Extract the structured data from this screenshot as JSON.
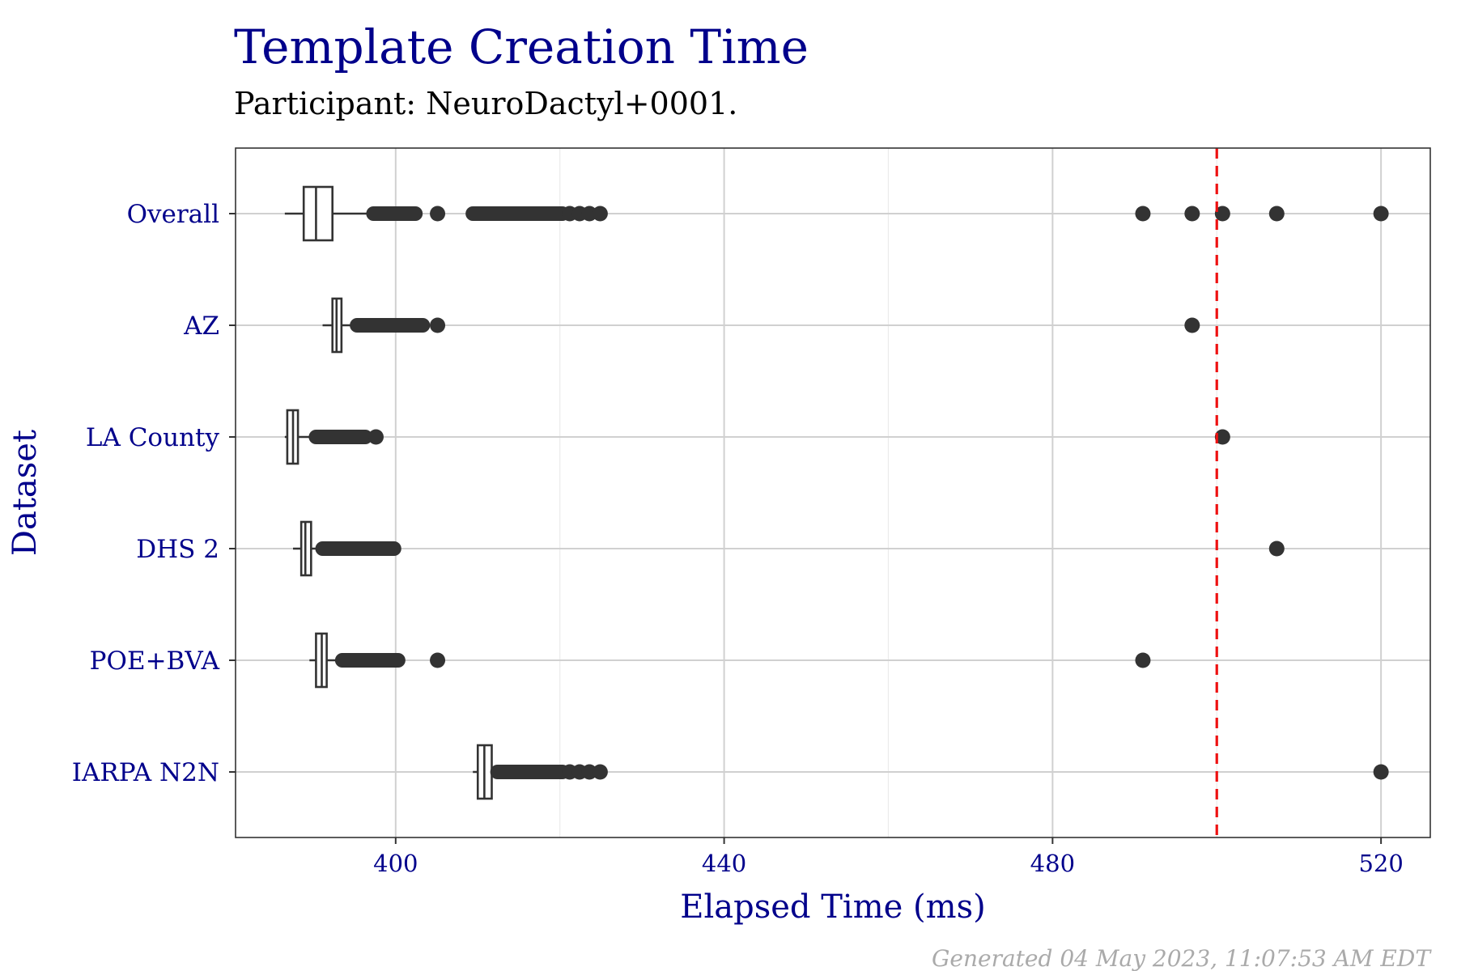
{
  "chart_data": {
    "type": "boxplot",
    "orientation": "horizontal",
    "title": "Template Creation Time",
    "subtitle": "Participant: NeuroDactyl+0001.",
    "xlabel": "Elapsed Time (ms)",
    "ylabel": "Dataset",
    "xlim": [
      380.5,
      526
    ],
    "xticks": [
      400,
      440,
      480,
      520
    ],
    "grid": true,
    "reference_line": {
      "x": 500,
      "style": "dashed",
      "color": "#EE1111"
    },
    "footer": "Generated 04 May 2023, 11:07:53 AM EDT",
    "colors": {
      "title": "#00008B",
      "box": "#333333",
      "grid_major": "#D0D0D0",
      "grid_minor": "#EBEBEB"
    },
    "categories": [
      "Overall",
      "AZ",
      "LA County",
      "DHS 2",
      "POE+BVA",
      "IARPA N2N"
    ],
    "boxes": [
      {
        "name": "Overall",
        "whisker_low": 386.5,
        "q1": 388.8,
        "median": 390.3,
        "q3": 392.3,
        "whisker_high": 397.3,
        "outlier_bands": [
          [
            397.3,
            402.4
          ],
          [
            409.4,
            420.3
          ]
        ],
        "outliers": [
          405.1,
          421.2,
          422.4,
          423.6,
          424.9,
          491.0,
          497.0,
          500.7,
          507.3,
          520.0
        ]
      },
      {
        "name": "AZ",
        "whisker_low": 391.1,
        "q1": 392.3,
        "median": 392.8,
        "q3": 393.4,
        "whisker_high": 395.3,
        "outlier_bands": [
          [
            395.3,
            403.3
          ]
        ],
        "outliers": [
          405.1,
          497.0
        ]
      },
      {
        "name": "LA County",
        "whisker_low": 386.5,
        "q1": 386.8,
        "median": 387.5,
        "q3": 388.1,
        "whisker_high": 390.3,
        "outlier_bands": [
          [
            390.3,
            396.3
          ]
        ],
        "outliers": [
          397.6,
          500.7
        ]
      },
      {
        "name": "DHS 2",
        "whisker_low": 387.5,
        "q1": 388.5,
        "median": 389.0,
        "q3": 389.7,
        "whisker_high": 391.1,
        "outlier_bands": [
          [
            391.1,
            399.8
          ]
        ],
        "outliers": [
          507.3
        ]
      },
      {
        "name": "POE+BVA",
        "whisker_low": 389.5,
        "q1": 390.3,
        "median": 391.0,
        "q3": 391.6,
        "whisker_high": 393.5,
        "outlier_bands": [
          [
            393.5,
            400.3
          ]
        ],
        "outliers": [
          405.1,
          491.0
        ]
      },
      {
        "name": "IARPA N2N",
        "whisker_low": 409.4,
        "q1": 410.0,
        "median": 410.8,
        "q3": 411.7,
        "whisker_high": 412.4,
        "outlier_bands": [
          [
            412.4,
            420.3
          ]
        ],
        "outliers": [
          421.2,
          422.4,
          423.6,
          424.9,
          520.0
        ]
      }
    ]
  }
}
